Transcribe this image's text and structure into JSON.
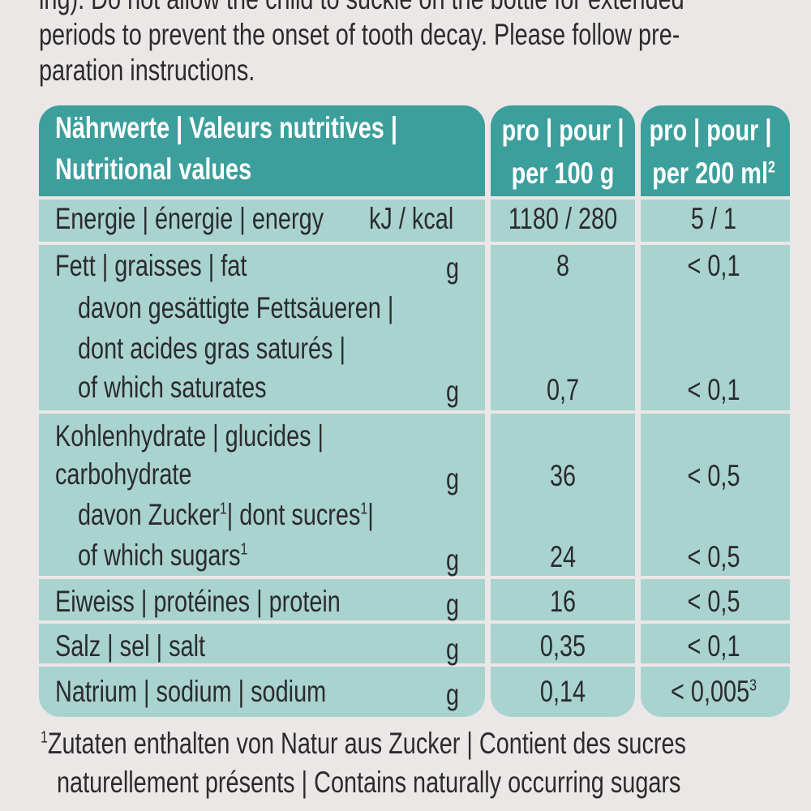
{
  "intro": {
    "line0": "ing). Do not allow the child to suckle on the bottle for extended",
    "line1": "periods to prevent the onset of tooth decay. Please follow pre-",
    "line2": "paration instructions."
  },
  "table": {
    "header": {
      "label_line1": "Nährwerte | Valeurs nutritives |",
      "label_line2": "Nutritional values",
      "col1_line1": "pro | pour |",
      "col1_line2": "per 100 g",
      "col2_line1": "pro | pour |",
      "col2_line2": "per 200 ml",
      "col2_sup": "2"
    },
    "rows": [
      {
        "label": "Energie | énergie | energy",
        "unit": "kJ / kcal",
        "per100": "1180 / 280",
        "per200": "5 / 1"
      },
      {
        "label": "Fett | graisses | fat",
        "unit": "g",
        "per100": "8",
        "per200": "< 0,1"
      },
      {
        "label_lines": [
          "davon gesättigte Fettsäueren |",
          "dont acides gras saturés |",
          "of which saturates"
        ],
        "unit": "g",
        "per100": "0,7",
        "per200": "< 0,1"
      },
      {
        "label_lines": [
          "Kohlenhydrate | glucides |",
          "carbohydrate"
        ],
        "unit": "g",
        "per100": "36",
        "per200": "< 0,5"
      },
      {
        "label_lines": [
          "davon Zucker",
          "| dont sucres",
          "|",
          "of which sugars"
        ],
        "sup": "1",
        "unit": "g",
        "per100": "24",
        "per200": "< 0,5"
      },
      {
        "label": "Eiweiss | protéines | protein",
        "unit": "g",
        "per100": "16",
        "per200": "< 0,5"
      },
      {
        "label": "Salz | sel | salt",
        "unit": "g",
        "per100": "0,35",
        "per200": "< 0,1"
      },
      {
        "label": "Natrium | sodium | sodium",
        "unit": "g",
        "per100": "0,14",
        "per200": "< 0,005",
        "per200_sup": "3"
      }
    ],
    "colors": {
      "header": "#3c9f9c",
      "body": "#a9d3cf"
    }
  },
  "footnote": {
    "marker": "1",
    "line1": "Zutaten enthalten von Natur aus Zucker | Contient des sucres",
    "line2": "naturellement présents | Contains naturally occurring sugars"
  }
}
